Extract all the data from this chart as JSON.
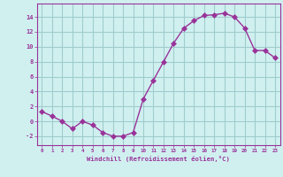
{
  "x": [
    0,
    1,
    2,
    3,
    4,
    5,
    6,
    7,
    8,
    9,
    10,
    11,
    12,
    13,
    14,
    15,
    16,
    17,
    18,
    19,
    20,
    21,
    22,
    23
  ],
  "y": [
    1.3,
    0.7,
    0.0,
    -1.0,
    0.0,
    -0.5,
    -1.5,
    -2.0,
    -2.0,
    -1.5,
    3.0,
    5.5,
    8.0,
    10.5,
    12.5,
    13.5,
    14.2,
    14.3,
    14.5,
    14.0,
    12.5,
    9.5,
    9.5,
    8.5
  ],
  "line_color": "#993399",
  "marker_color": "#993399",
  "bg_color": "#d0f0f0",
  "grid_color": "#a0cccc",
  "xlabel": "Windchill (Refroidissement éolien,°C)",
  "xlabel_color": "#993399",
  "xtick_labels": [
    "0",
    "1",
    "2",
    "3",
    "4",
    "5",
    "6",
    "7",
    "8",
    "9",
    "10",
    "11",
    "12",
    "13",
    "14",
    "15",
    "16",
    "17",
    "18",
    "19",
    "20",
    "21",
    "22",
    "23"
  ],
  "ytick_vals": [
    -2,
    0,
    2,
    4,
    6,
    8,
    10,
    12,
    14
  ],
  "ylim": [
    -3.2,
    15.8
  ],
  "xlim": [
    -0.5,
    23.5
  ],
  "tick_color": "#993399",
  "marker_size": 3.0
}
